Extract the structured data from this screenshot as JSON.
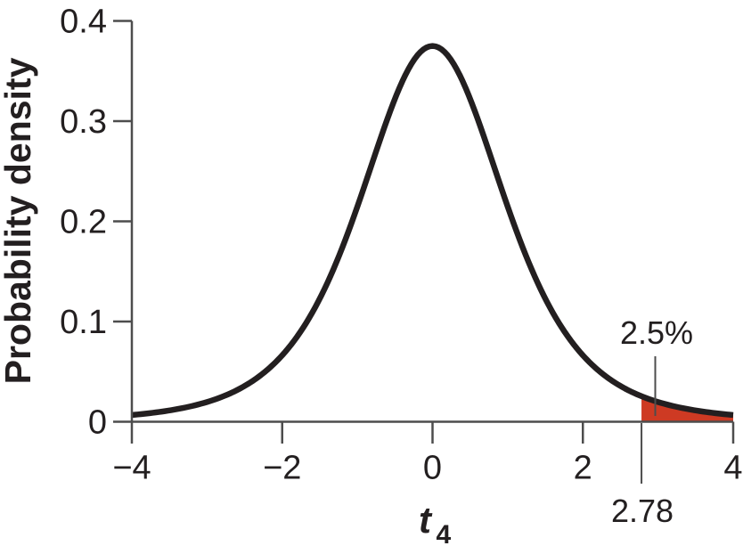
{
  "figure": {
    "y_axis_title": "Probability density",
    "x_axis_title_base": "t",
    "x_axis_title_sub": "4"
  },
  "chart_data": {
    "type": "area",
    "title": "",
    "ylabel": "Probability density",
    "xlabel": "t4",
    "xlim": [
      -4,
      4
    ],
    "ylim": [
      0,
      0.4
    ],
    "grid": false,
    "legend": "none",
    "x_tick_values": [
      -4,
      -2,
      0,
      2,
      4
    ],
    "x_tick_labels": [
      "−4",
      "−2",
      "0",
      "2",
      "4"
    ],
    "y_tick_values": [
      0,
      0.1,
      0.2,
      0.3,
      0.4
    ],
    "y_tick_labels": [
      "0",
      "0.1",
      "0.2",
      "0.3",
      "0.4"
    ],
    "distribution": {
      "name": "Student t",
      "df": 4,
      "peak_density": 0.375
    },
    "curve_points": [
      {
        "x": -4.0,
        "y": 0.0067
      },
      {
        "x": -3.5,
        "y": 0.0113
      },
      {
        "x": -3.0,
        "y": 0.0197
      },
      {
        "x": -2.5,
        "y": 0.0357
      },
      {
        "x": -2.0,
        "y": 0.0663
      },
      {
        "x": -1.5,
        "y": 0.1229
      },
      {
        "x": -1.0,
        "y": 0.2147
      },
      {
        "x": -0.5,
        "y": 0.3222
      },
      {
        "x": 0.0,
        "y": 0.375
      },
      {
        "x": 0.5,
        "y": 0.3222
      },
      {
        "x": 1.0,
        "y": 0.2147
      },
      {
        "x": 1.5,
        "y": 0.1229
      },
      {
        "x": 2.0,
        "y": 0.0663
      },
      {
        "x": 2.5,
        "y": 0.0357
      },
      {
        "x": 2.78,
        "y": 0.0255
      },
      {
        "x": 3.0,
        "y": 0.0197
      },
      {
        "x": 3.5,
        "y": 0.0113
      },
      {
        "x": 4.0,
        "y": 0.0067
      }
    ],
    "shaded_region": {
      "x_from": 2.78,
      "x_to": 4,
      "area_label": "2.5%",
      "fill_color": "#ce3a23"
    },
    "critical_value": 2.78,
    "critical_value_label": "2.78",
    "colors": {
      "curve": "#231f20",
      "axis": "#4d4d4d",
      "text": "#231f20",
      "background": "#ffffff"
    }
  }
}
